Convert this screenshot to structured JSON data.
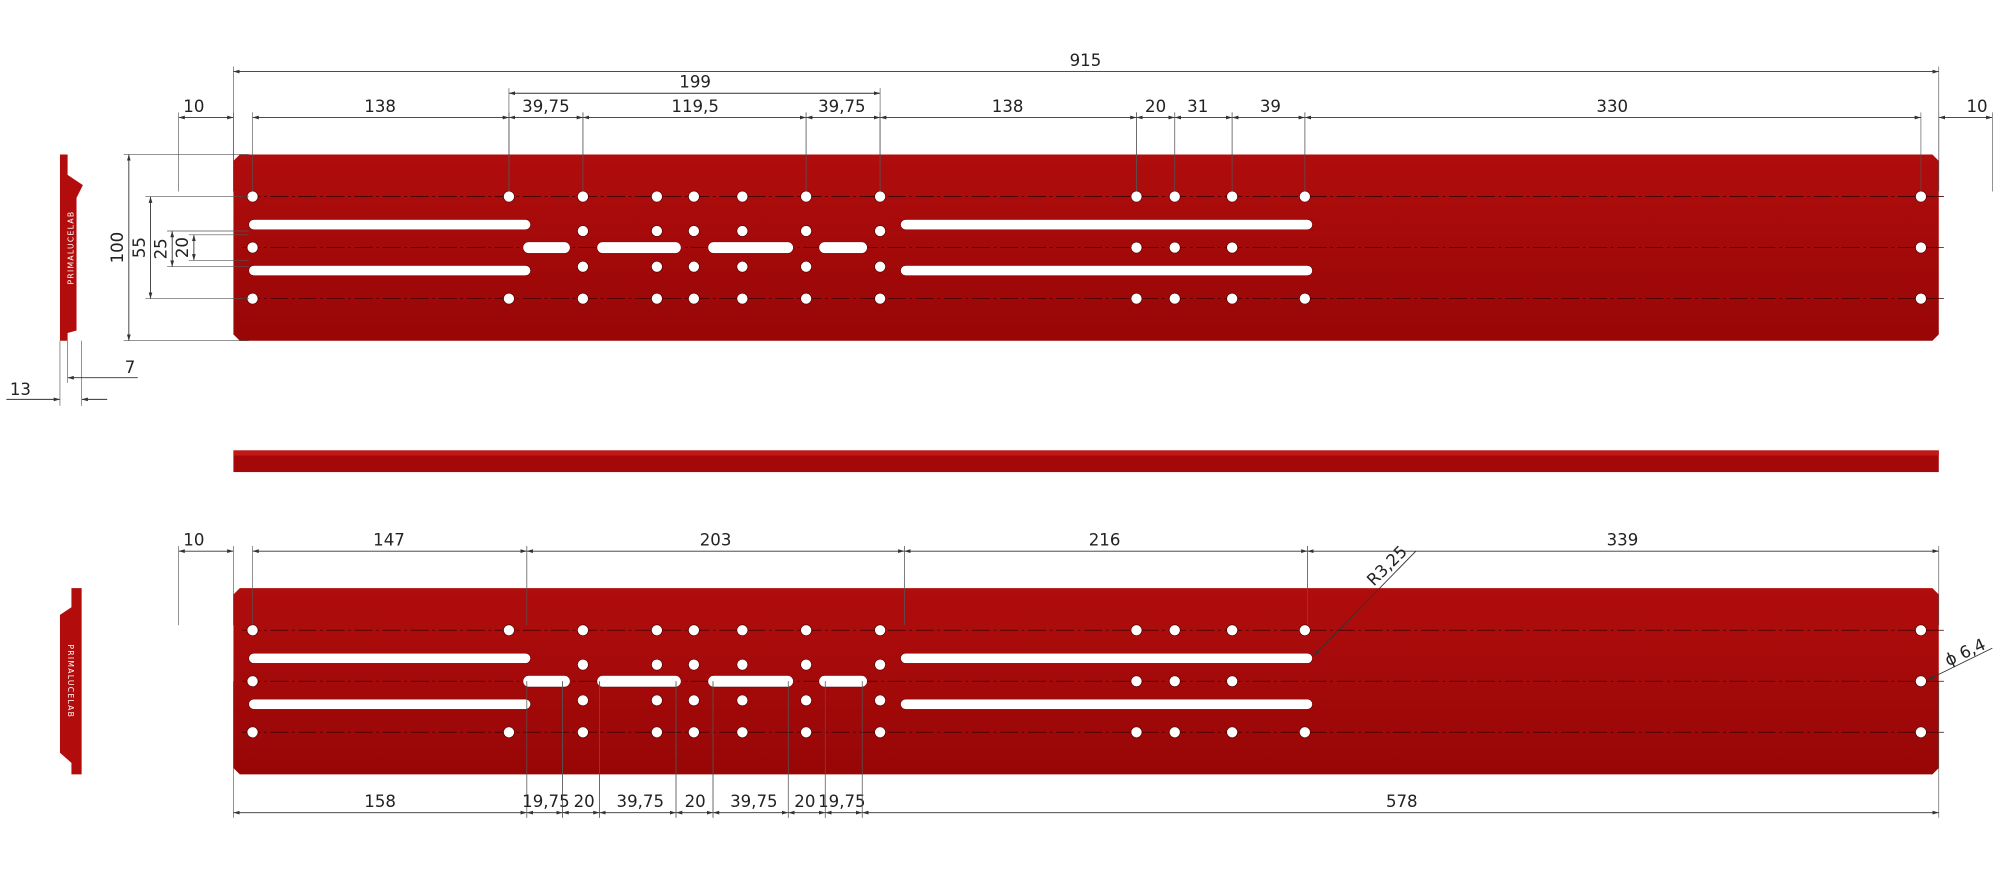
{
  "top_view": {
    "dimensions": [
      "915",
      "199",
      "10",
      "138",
      "39,75",
      "119,5",
      "39,75",
      "138",
      "20",
      "31",
      "39",
      "330",
      "10"
    ],
    "vertical_dimensions": [
      "100",
      "55",
      "25",
      "20"
    ],
    "side_profile": {
      "logo": "PRIMALUCELAB",
      "dimensions": [
        "13",
        "7"
      ]
    }
  },
  "bottom_view": {
    "top_dimensions": [
      "10",
      "147",
      "203",
      "216",
      "339"
    ],
    "bottom_dimensions": [
      "158",
      "19,75",
      "20",
      "39,75",
      "20",
      "39,75",
      "20",
      "19,75",
      "578"
    ],
    "callouts": [
      "R3,25",
      "ϕ 6,4"
    ],
    "side_profile": {
      "logo": "PRIMALUCELAB"
    }
  }
}
